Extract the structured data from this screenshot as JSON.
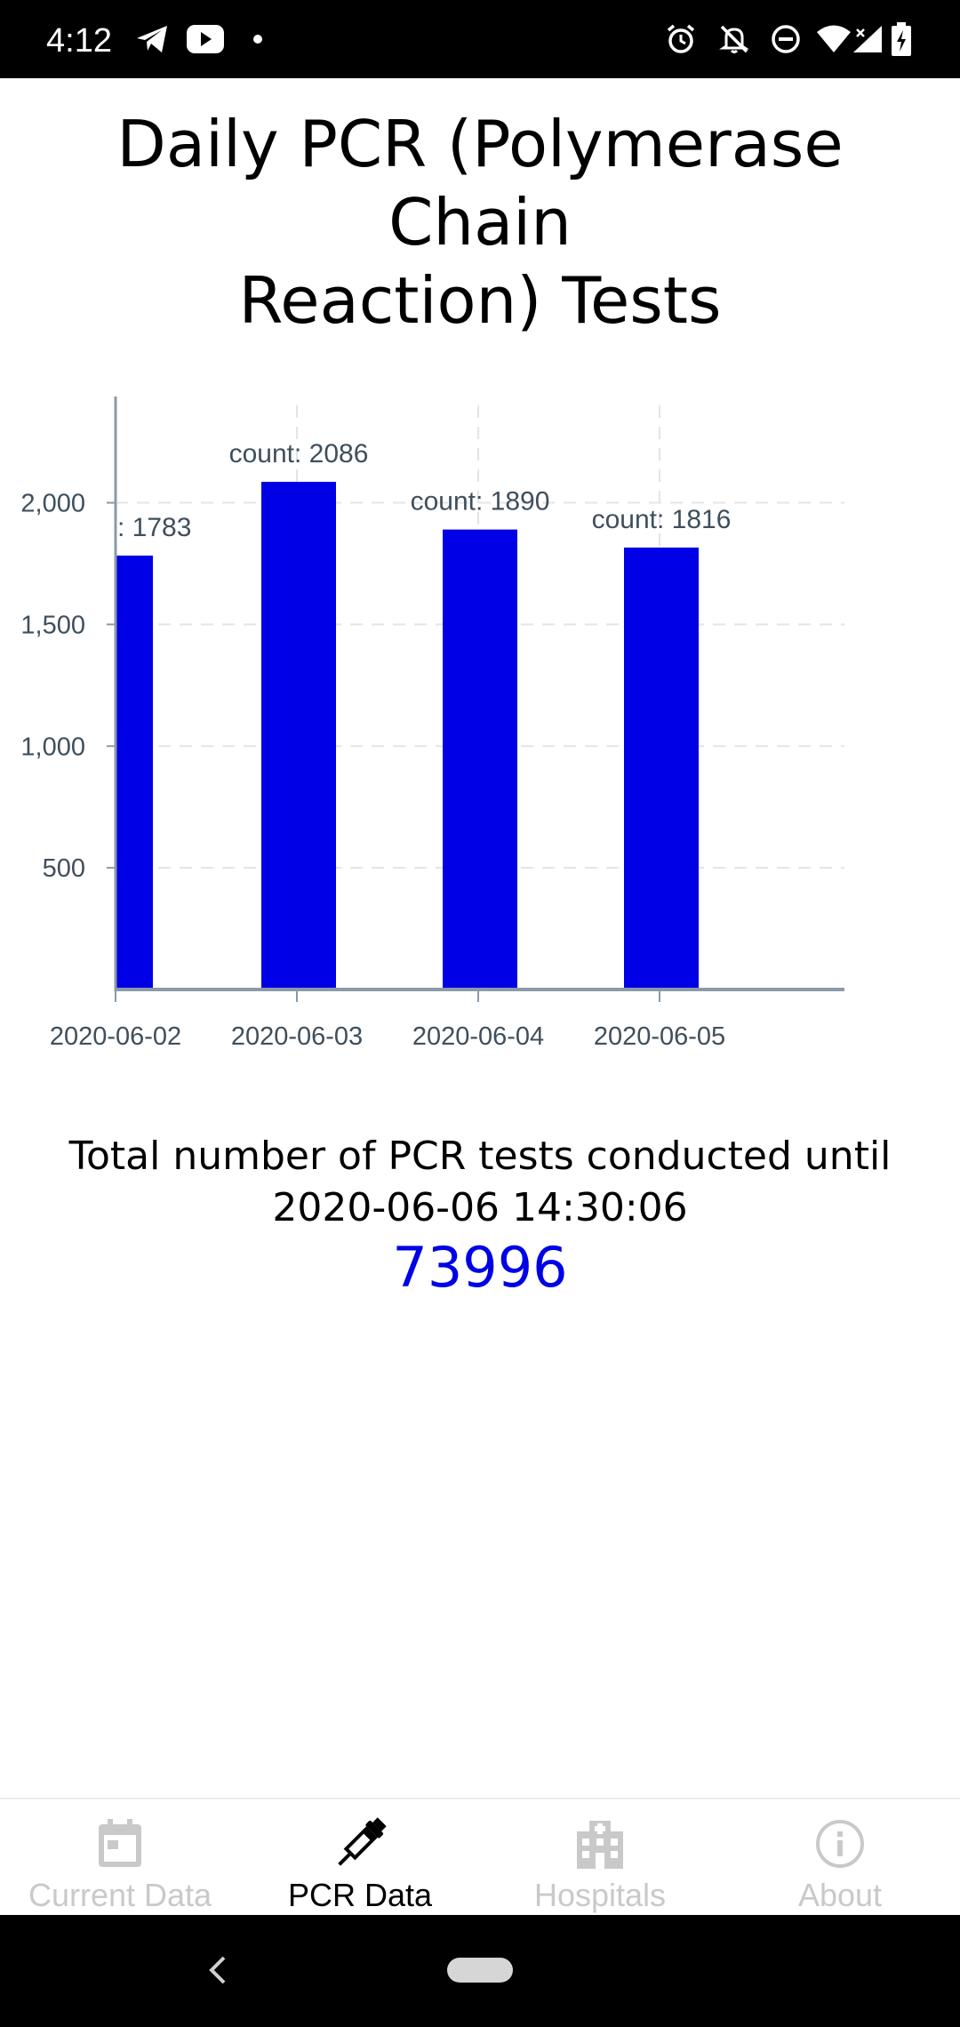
{
  "status_bar": {
    "time": "4:12",
    "left_icons": [
      "telegram-icon",
      "youtube-icon",
      "dot-icon"
    ],
    "right_icons": [
      "alarm-icon",
      "notifications-off-icon",
      "do-not-disturb-icon",
      "wifi-icon",
      "signal-icon",
      "battery-charging-icon"
    ]
  },
  "page": {
    "title_line1": "Daily PCR (Polymerase Chain",
    "title_line2": "Reaction) Tests"
  },
  "chart_data": {
    "type": "bar",
    "categories": [
      "2020-06-02",
      "2020-06-03",
      "2020-06-04",
      "2020-06-05"
    ],
    "values": [
      1783,
      2086,
      1890,
      1816
    ],
    "data_label_prefix": "count: ",
    "first_label_visible_text": ": 1783",
    "y_ticks": [
      500,
      1000,
      1500,
      2000
    ],
    "y_tick_labels": [
      "500",
      "1,000",
      "1,500",
      "2,000"
    ],
    "ylim": [
      0,
      2400
    ],
    "grid": true,
    "bar_color": "#0000e6",
    "axis_color": "#8a9aa8"
  },
  "totals": {
    "label_line1": "Total number of PCR tests conducted until",
    "label_line2": "2020-06-06 14:30:06",
    "value": "73996"
  },
  "tabs": [
    {
      "label": "Current Data",
      "icon": "calendar-icon",
      "active": false
    },
    {
      "label": "PCR Data",
      "icon": "syringe-icon",
      "active": true
    },
    {
      "label": "Hospitals",
      "icon": "hospital-icon",
      "active": false
    },
    {
      "label": "About",
      "icon": "info-icon",
      "active": false
    }
  ],
  "colors": {
    "accent": "#0000e6",
    "tab_inactive": "#c9c9c9",
    "tab_active": "#000000"
  }
}
